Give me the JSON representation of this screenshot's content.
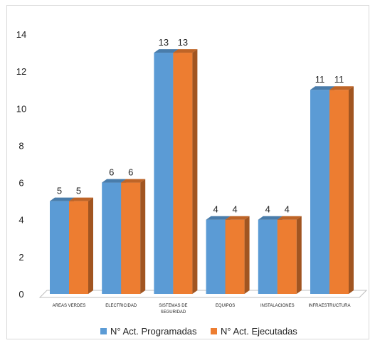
{
  "chart_data": {
    "type": "bar",
    "categories": [
      "AREAS VERDES",
      "ELECTRICIDAD",
      "SISTEMAS DE SEGURIDAD",
      "EQUIPOS",
      "INSTALACIONES",
      "INFRAESTRUCTURA"
    ],
    "series": [
      {
        "name": "N° Act. Programadas",
        "values": [
          5,
          6,
          13,
          4,
          4,
          11
        ],
        "color": "#5b9bd5"
      },
      {
        "name": "N° Act. Ejecutadas",
        "values": [
          5,
          6,
          13,
          4,
          4,
          11
        ],
        "color": "#ed7d31"
      }
    ],
    "ylim": [
      0,
      14
    ],
    "yticks": [
      0,
      2,
      4,
      6,
      8,
      10,
      12,
      14
    ],
    "legend_position": "bottom",
    "style": "3d-clustered-column",
    "grid": false
  }
}
